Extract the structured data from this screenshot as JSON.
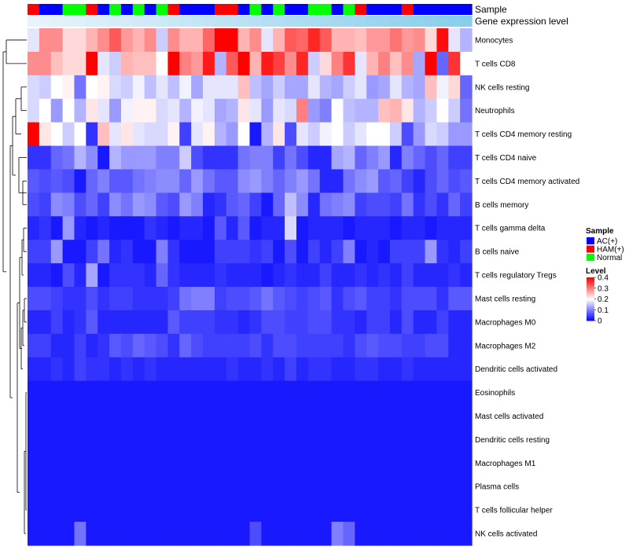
{
  "chart_data": {
    "type": "heatmap",
    "annotation_labels": [
      "Sample",
      "Gene expression level"
    ],
    "rows": [
      "Monocytes",
      "T cells CD8",
      "NK cells resting",
      "Neutrophils",
      "T cells CD4 memory resting",
      "T cells CD4 naive",
      "T cells CD4 memory activated",
      "B cells memory",
      "T cells gamma delta",
      "B cells naive",
      "T cells regulatory  Tregs",
      "Mast cells resting",
      "Macrophages M0",
      "Macrophages M2",
      "Dendritic cells activated",
      "Eosinophils",
      "Mast cells activated",
      "Dendritic cells resting",
      "Macrophages M1",
      "Plasma cells",
      "T cells follicular helper",
      "NK cells activated"
    ],
    "sample_groups": [
      "HAM",
      "AC",
      "AC",
      "NORM",
      "NORM",
      "HAM",
      "AC",
      "NORM",
      "AC",
      "NORM",
      "AC",
      "NORM",
      "HAM",
      "AC",
      "AC",
      "AC",
      "HAM",
      "HAM",
      "AC",
      "NORM",
      "AC",
      "NORM",
      "AC",
      "AC",
      "NORM",
      "NORM",
      "AC",
      "NORM",
      "HAM",
      "AC",
      "AC",
      "AC",
      "HAM",
      "AC",
      "AC",
      "AC",
      "AC",
      "AC"
    ],
    "value_range": [
      0,
      0.4
    ],
    "colorbar_ticks": [
      0,
      0.1,
      0.2,
      0.3,
      0.4
    ],
    "values": [
      [
        0.18,
        0.29,
        0.29,
        0.23,
        0.23,
        0.26,
        0.29,
        0.33,
        0.28,
        0.26,
        0.29,
        0.16,
        0.29,
        0.26,
        0.26,
        0.32,
        0.4,
        0.4,
        0.26,
        0.29,
        0.18,
        0.26,
        0.33,
        0.32,
        0.37,
        0.33,
        0.26,
        0.26,
        0.25,
        0.28,
        0.28,
        0.31,
        0.28,
        0.29,
        0.23,
        0.39,
        0.18,
        0.14
      ],
      [
        0.29,
        0.29,
        0.25,
        0.23,
        0.23,
        0.4,
        0.18,
        0.16,
        0.26,
        0.25,
        0.25,
        0.2,
        0.4,
        0.3,
        0.28,
        0.38,
        0.14,
        0.33,
        0.4,
        0.26,
        0.38,
        0.35,
        0.29,
        0.37,
        0.16,
        0.23,
        0.3,
        0.36,
        0.18,
        0.26,
        0.3,
        0.25,
        0.29,
        0.13,
        0.4,
        0.08,
        0.36,
        0.2
      ],
      [
        0.17,
        0.16,
        0.2,
        0.21,
        0.09,
        0.2,
        0.21,
        0.17,
        0.16,
        0.19,
        0.15,
        0.18,
        0.15,
        0.19,
        0.13,
        0.18,
        0.18,
        0.18,
        0.25,
        0.15,
        0.13,
        0.16,
        0.13,
        0.13,
        0.18,
        0.14,
        0.13,
        0.16,
        0.18,
        0.12,
        0.13,
        0.18,
        0.14,
        0.13,
        0.25,
        0.19,
        0.23,
        0.08
      ],
      [
        0.17,
        0.2,
        0.12,
        0.2,
        0.14,
        0.22,
        0.18,
        0.12,
        0.19,
        0.21,
        0.21,
        0.17,
        0.18,
        0.14,
        0.19,
        0.18,
        0.13,
        0.14,
        0.22,
        0.18,
        0.12,
        0.18,
        0.17,
        0.3,
        0.12,
        0.1,
        0.2,
        0.15,
        0.14,
        0.14,
        0.25,
        0.26,
        0.22,
        0.14,
        0.16,
        0.2,
        0.16,
        0.09
      ],
      [
        0.4,
        0.22,
        0.2,
        0.16,
        0.2,
        0.04,
        0.25,
        0.18,
        0.22,
        0.18,
        0.17,
        0.17,
        0.21,
        0.05,
        0.18,
        0.21,
        0.14,
        0.12,
        0.2,
        0.02,
        0.14,
        0.22,
        0.06,
        0.18,
        0.16,
        0.19,
        0.2,
        0.16,
        0.18,
        0.2,
        0.2,
        0.16,
        0.06,
        0.12,
        0.17,
        0.16,
        0.12,
        0.12
      ],
      [
        0.04,
        0.04,
        0.08,
        0.09,
        0.14,
        0.11,
        0.02,
        0.14,
        0.12,
        0.12,
        0.12,
        0.1,
        0.1,
        0.16,
        0.06,
        0.04,
        0.04,
        0.04,
        0.09,
        0.1,
        0.1,
        0.05,
        0.09,
        0.06,
        0.03,
        0.03,
        0.13,
        0.14,
        0.08,
        0.1,
        0.12,
        0.03,
        0.1,
        0.08,
        0.06,
        0.08,
        0.05,
        0.05
      ],
      [
        0.07,
        0.06,
        0.07,
        0.06,
        0.02,
        0.08,
        0.1,
        0.07,
        0.07,
        0.09,
        0.1,
        0.11,
        0.11,
        0.08,
        0.12,
        0.09,
        0.07,
        0.07,
        0.11,
        0.12,
        0.1,
        0.08,
        0.1,
        0.12,
        0.09,
        0.03,
        0.03,
        0.09,
        0.11,
        0.12,
        0.07,
        0.08,
        0.05,
        0.03,
        0.06,
        0.08,
        0.06,
        0.07
      ],
      [
        0.06,
        0.05,
        0.11,
        0.1,
        0.06,
        0.08,
        0.05,
        0.11,
        0.09,
        0.12,
        0.11,
        0.07,
        0.06,
        0.12,
        0.1,
        0.03,
        0.04,
        0.07,
        0.08,
        0.05,
        0.02,
        0.08,
        0.15,
        0.11,
        0.03,
        0.09,
        0.1,
        0.11,
        0.05,
        0.06,
        0.06,
        0.05,
        0.09,
        0.04,
        0.06,
        0.04,
        0.08,
        0.05
      ],
      [
        0.03,
        0.04,
        0.02,
        0.12,
        0.03,
        0.02,
        0.03,
        0.02,
        0.02,
        0.02,
        0.04,
        0.03,
        0.02,
        0.03,
        0.03,
        0.02,
        0.07,
        0.03,
        0.07,
        0.02,
        0.03,
        0.03,
        0.17,
        0.02,
        0.03,
        0.03,
        0.03,
        0.02,
        0.03,
        0.03,
        0.03,
        0.02,
        0.03,
        0.03,
        0.02,
        0.03,
        0.03,
        0.03
      ],
      [
        0.05,
        0.05,
        0.12,
        0.02,
        0.02,
        0.05,
        0.09,
        0.03,
        0.04,
        0.02,
        0.02,
        0.1,
        0.04,
        0.02,
        0.02,
        0.02,
        0.05,
        0.05,
        0.05,
        0.04,
        0.05,
        0.02,
        0.06,
        0.02,
        0.05,
        0.03,
        0.05,
        0.1,
        0.02,
        0.03,
        0.02,
        0.05,
        0.05,
        0.05,
        0.12,
        0.04,
        0.03,
        0.05
      ],
      [
        0.03,
        0.03,
        0.02,
        0.06,
        0.03,
        0.13,
        0.02,
        0.04,
        0.04,
        0.04,
        0.03,
        0.08,
        0.04,
        0.03,
        0.03,
        0.03,
        0.04,
        0.03,
        0.03,
        0.03,
        0.02,
        0.03,
        0.04,
        0.03,
        0.03,
        0.05,
        0.03,
        0.03,
        0.04,
        0.03,
        0.04,
        0.03,
        0.05,
        0.03,
        0.03,
        0.03,
        0.04,
        0.03
      ],
      [
        0.06,
        0.06,
        0.05,
        0.04,
        0.04,
        0.06,
        0.04,
        0.05,
        0.05,
        0.04,
        0.04,
        0.04,
        0.05,
        0.09,
        0.1,
        0.1,
        0.05,
        0.06,
        0.06,
        0.07,
        0.09,
        0.07,
        0.06,
        0.05,
        0.06,
        0.07,
        0.04,
        0.06,
        0.07,
        0.05,
        0.05,
        0.04,
        0.06,
        0.06,
        0.06,
        0.04,
        0.07,
        0.07
      ],
      [
        0.03,
        0.03,
        0.05,
        0.03,
        0.04,
        0.07,
        0.03,
        0.03,
        0.03,
        0.03,
        0.03,
        0.03,
        0.07,
        0.05,
        0.05,
        0.05,
        0.04,
        0.04,
        0.03,
        0.04,
        0.06,
        0.06,
        0.05,
        0.05,
        0.06,
        0.06,
        0.04,
        0.04,
        0.03,
        0.05,
        0.05,
        0.03,
        0.06,
        0.03,
        0.03,
        0.05,
        0.03,
        0.03
      ],
      [
        0.05,
        0.05,
        0.03,
        0.03,
        0.05,
        0.03,
        0.04,
        0.07,
        0.06,
        0.08,
        0.07,
        0.06,
        0.04,
        0.08,
        0.06,
        0.05,
        0.05,
        0.05,
        0.05,
        0.06,
        0.04,
        0.06,
        0.06,
        0.05,
        0.05,
        0.05,
        0.05,
        0.04,
        0.06,
        0.07,
        0.06,
        0.06,
        0.05,
        0.05,
        0.06,
        0.06,
        0.03,
        0.03
      ],
      [
        0.03,
        0.03,
        0.04,
        0.03,
        0.05,
        0.04,
        0.04,
        0.03,
        0.04,
        0.03,
        0.04,
        0.03,
        0.03,
        0.03,
        0.03,
        0.03,
        0.03,
        0.04,
        0.03,
        0.03,
        0.04,
        0.03,
        0.05,
        0.03,
        0.04,
        0.04,
        0.03,
        0.03,
        0.04,
        0.04,
        0.03,
        0.03,
        0.04,
        0.03,
        0.03,
        0.03,
        0.03,
        0.03
      ],
      [
        0.02,
        0.02,
        0.02,
        0.02,
        0.02,
        0.02,
        0.02,
        0.02,
        0.02,
        0.02,
        0.02,
        0.02,
        0.02,
        0.02,
        0.02,
        0.02,
        0.02,
        0.02,
        0.02,
        0.02,
        0.02,
        0.02,
        0.02,
        0.02,
        0.02,
        0.02,
        0.02,
        0.02,
        0.02,
        0.02,
        0.02,
        0.02,
        0.02,
        0.02,
        0.02,
        0.02,
        0.02,
        0.02
      ],
      [
        0.02,
        0.02,
        0.02,
        0.02,
        0.02,
        0.02,
        0.02,
        0.02,
        0.02,
        0.02,
        0.02,
        0.02,
        0.02,
        0.02,
        0.02,
        0.02,
        0.02,
        0.02,
        0.02,
        0.02,
        0.02,
        0.02,
        0.02,
        0.02,
        0.02,
        0.02,
        0.02,
        0.02,
        0.02,
        0.02,
        0.02,
        0.02,
        0.02,
        0.02,
        0.02,
        0.02,
        0.02,
        0.02
      ],
      [
        0.02,
        0.02,
        0.02,
        0.02,
        0.02,
        0.02,
        0.02,
        0.02,
        0.02,
        0.02,
        0.02,
        0.02,
        0.02,
        0.02,
        0.02,
        0.02,
        0.02,
        0.02,
        0.02,
        0.02,
        0.02,
        0.02,
        0.02,
        0.02,
        0.02,
        0.02,
        0.02,
        0.02,
        0.02,
        0.02,
        0.02,
        0.02,
        0.02,
        0.02,
        0.02,
        0.02,
        0.02,
        0.02
      ],
      [
        0.02,
        0.02,
        0.02,
        0.02,
        0.02,
        0.02,
        0.02,
        0.02,
        0.02,
        0.02,
        0.02,
        0.02,
        0.02,
        0.02,
        0.02,
        0.02,
        0.02,
        0.02,
        0.02,
        0.02,
        0.02,
        0.02,
        0.02,
        0.02,
        0.02,
        0.02,
        0.02,
        0.02,
        0.02,
        0.02,
        0.02,
        0.02,
        0.02,
        0.02,
        0.02,
        0.02,
        0.02,
        0.02
      ],
      [
        0.02,
        0.02,
        0.02,
        0.02,
        0.02,
        0.02,
        0.02,
        0.02,
        0.02,
        0.02,
        0.02,
        0.02,
        0.02,
        0.02,
        0.02,
        0.02,
        0.02,
        0.02,
        0.02,
        0.02,
        0.02,
        0.02,
        0.02,
        0.02,
        0.02,
        0.02,
        0.02,
        0.02,
        0.02,
        0.02,
        0.02,
        0.02,
        0.02,
        0.02,
        0.02,
        0.02,
        0.02,
        0.02
      ],
      [
        0.02,
        0.02,
        0.02,
        0.02,
        0.02,
        0.02,
        0.02,
        0.02,
        0.02,
        0.02,
        0.02,
        0.02,
        0.02,
        0.02,
        0.02,
        0.02,
        0.02,
        0.02,
        0.02,
        0.02,
        0.02,
        0.02,
        0.02,
        0.02,
        0.02,
        0.02,
        0.02,
        0.02,
        0.02,
        0.02,
        0.02,
        0.02,
        0.02,
        0.02,
        0.02,
        0.02,
        0.02,
        0.02
      ],
      [
        0.02,
        0.02,
        0.02,
        0.02,
        0.09,
        0.02,
        0.02,
        0.02,
        0.02,
        0.02,
        0.02,
        0.02,
        0.02,
        0.02,
        0.02,
        0.02,
        0.02,
        0.02,
        0.02,
        0.06,
        0.02,
        0.02,
        0.02,
        0.02,
        0.02,
        0.02,
        0.1,
        0.08,
        0.02,
        0.02,
        0.02,
        0.02,
        0.02,
        0.02,
        0.02,
        0.02,
        0.02,
        0.02
      ]
    ],
    "legend": {
      "sample_title": "Sample",
      "sample_entries": [
        {
          "key": "AC",
          "label": "AC(+)",
          "color": "#0000ff"
        },
        {
          "key": "HAM",
          "label": "HAM(+)",
          "color": "#ff0000"
        },
        {
          "key": "NORM",
          "label": "Normal",
          "color": "#00ff00"
        }
      ],
      "level_title": "Level"
    },
    "colors": {
      "low": "#0000ff",
      "mid": "#ffffff",
      "high": "#ff0000",
      "expr_strip_start": "#e8f4fb",
      "expr_strip_end": "#87ceeb"
    }
  }
}
